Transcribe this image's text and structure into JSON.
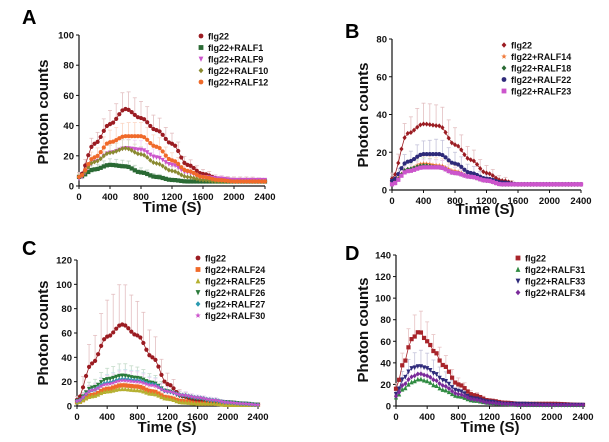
{
  "chart_data": [
    {
      "panel": "A",
      "type": "line",
      "title": "",
      "xlabel": "Time (S)",
      "ylabel": "Photon counts",
      "xlim": [
        0,
        2400
      ],
      "ylim": [
        0,
        100
      ],
      "xticks": [
        0,
        400,
        800,
        1200,
        1600,
        2000,
        2400
      ],
      "yticks": [
        0,
        20,
        40,
        60,
        80,
        100
      ],
      "legend_position": "top-right",
      "grid": false,
      "x": [
        0,
        200,
        400,
        600,
        800,
        1000,
        1200,
        1400,
        1600,
        1800,
        2000,
        2200,
        2400
      ],
      "series": [
        {
          "name": "flg22",
          "color": "#9b1c22",
          "marker": "circle",
          "values": [
            6,
            28,
            41,
            51,
            45,
            37,
            28,
            14,
            8,
            5,
            4,
            4,
            3
          ],
          "error": [
            3,
            6,
            9,
            12,
            11,
            9,
            7,
            4,
            3,
            2,
            2,
            2,
            2
          ]
        },
        {
          "name": "flg22+RALF1",
          "color": "#2a6a34",
          "marker": "square",
          "values": [
            6,
            11,
            14,
            13,
            9,
            6,
            4,
            3,
            3,
            3,
            3,
            3,
            3
          ],
          "error": [
            2,
            3,
            4,
            4,
            3,
            2,
            1,
            1,
            1,
            1,
            1,
            1,
            1
          ]
        },
        {
          "name": "flg22+RALF9",
          "color": "#cc55cc",
          "marker": "triangle-down",
          "values": [
            5,
            16,
            22,
            25,
            24,
            19,
            14,
            9,
            6,
            5,
            4,
            4,
            4
          ],
          "error": [
            2,
            4,
            5,
            6,
            6,
            5,
            4,
            3,
            2,
            2,
            1,
            1,
            1
          ]
        },
        {
          "name": "flg22+RALF10",
          "color": "#8a8a30",
          "marker": "diamond",
          "values": [
            6,
            16,
            22,
            25,
            21,
            15,
            10,
            6,
            4,
            3,
            3,
            3,
            3
          ],
          "error": [
            2,
            4,
            5,
            6,
            5,
            4,
            3,
            2,
            1,
            1,
            1,
            1,
            1
          ]
        },
        {
          "name": "flg22+RALF12",
          "color": "#f06a2a",
          "marker": "circle",
          "values": [
            6,
            19,
            29,
            33,
            33,
            26,
            17,
            10,
            6,
            4,
            3,
            3,
            3
          ],
          "error": [
            2,
            5,
            8,
            9,
            9,
            7,
            5,
            3,
            2,
            1,
            1,
            1,
            1
          ]
        }
      ]
    },
    {
      "panel": "B",
      "type": "line",
      "title": "",
      "xlabel": "Time (S)",
      "ylabel": "Photon counts",
      "xlim": [
        0,
        2400
      ],
      "ylim": [
        0,
        80
      ],
      "xticks": [
        0,
        400,
        800,
        1200,
        1600,
        2000,
        2400
      ],
      "yticks": [
        0,
        20,
        40,
        60,
        80
      ],
      "legend_position": "top-right",
      "grid": false,
      "x": [
        0,
        200,
        400,
        600,
        800,
        1000,
        1200,
        1400,
        1600,
        1800,
        2000,
        2200,
        2400
      ],
      "series": [
        {
          "name": "flg22",
          "color": "#9b1c22",
          "marker": "diamond",
          "values": [
            6,
            30,
            35,
            34,
            24,
            16,
            9,
            5,
            3,
            3,
            3,
            3,
            3
          ],
          "error": [
            3,
            8,
            11,
            11,
            9,
            6,
            4,
            2,
            1,
            1,
            1,
            1,
            1
          ]
        },
        {
          "name": "flg22+RALF14",
          "color": "#f07a3a",
          "marker": "star",
          "values": [
            4,
            11,
            14,
            13,
            10,
            7,
            5,
            3,
            3,
            3,
            3,
            3,
            3
          ],
          "error": [
            2,
            3,
            4,
            4,
            3,
            2,
            2,
            1,
            1,
            1,
            1,
            1,
            1
          ]
        },
        {
          "name": "flg22+RALF18",
          "color": "#2a6a34",
          "marker": "diamond",
          "values": [
            3,
            11,
            13,
            12,
            9,
            7,
            5,
            3,
            3,
            3,
            3,
            3,
            3
          ],
          "error": [
            2,
            3,
            4,
            4,
            3,
            2,
            2,
            1,
            1,
            1,
            1,
            1,
            1
          ]
        },
        {
          "name": "flg22+RALF22",
          "color": "#2e2a7a",
          "marker": "circle",
          "values": [
            5,
            15,
            19,
            19,
            14,
            9,
            6,
            4,
            3,
            3,
            3,
            3,
            3
          ],
          "error": [
            2,
            5,
            7,
            8,
            6,
            4,
            2,
            1,
            1,
            1,
            1,
            1,
            1
          ]
        },
        {
          "name": "flg22+RALF23",
          "color": "#cc55cc",
          "marker": "square",
          "values": [
            3,
            10,
            12,
            12,
            9,
            7,
            5,
            3,
            3,
            3,
            3,
            3,
            3
          ],
          "error": [
            2,
            3,
            4,
            4,
            3,
            2,
            2,
            1,
            1,
            1,
            1,
            1,
            1
          ]
        }
      ]
    },
    {
      "panel": "C",
      "type": "line",
      "title": "",
      "xlabel": "Time (S)",
      "ylabel": "Photon counts",
      "xlim": [
        0,
        2400
      ],
      "ylim": [
        0,
        120
      ],
      "xticks": [
        0,
        400,
        800,
        1200,
        1600,
        2000,
        2400
      ],
      "yticks": [
        0,
        20,
        40,
        60,
        80,
        100,
        120
      ],
      "legend_position": "top-right",
      "grid": false,
      "x": [
        0,
        200,
        400,
        600,
        800,
        1000,
        1200,
        1400,
        1600,
        1800,
        2000,
        2200,
        2400
      ],
      "series": [
        {
          "name": "flg22",
          "color": "#9b1c22",
          "marker": "circle",
          "values": [
            5,
            35,
            57,
            67,
            58,
            40,
            18,
            8,
            4,
            2,
            1,
            1,
            1
          ],
          "error": [
            3,
            20,
            30,
            34,
            28,
            20,
            9,
            4,
            2,
            1,
            1,
            1,
            1
          ]
        },
        {
          "name": "flg22+RALF24",
          "color": "#f06a2a",
          "marker": "square",
          "values": [
            3,
            9,
            14,
            17,
            16,
            12,
            7,
            4,
            2,
            2,
            1,
            1,
            1
          ],
          "error": [
            1,
            3,
            5,
            6,
            5,
            4,
            2,
            1,
            1,
            1,
            1,
            1,
            1
          ]
        },
        {
          "name": "flg22+RALF25",
          "color": "#b5b030",
          "marker": "triangle-up",
          "values": [
            3,
            8,
            12,
            14,
            13,
            10,
            6,
            3,
            2,
            2,
            1,
            1,
            1
          ],
          "error": [
            1,
            3,
            4,
            5,
            4,
            3,
            2,
            1,
            1,
            1,
            1,
            1,
            1
          ]
        },
        {
          "name": "flg22+RALF26",
          "color": "#2a7a3a",
          "marker": "triangle-down",
          "values": [
            4,
            15,
            22,
            25,
            23,
            19,
            12,
            8,
            6,
            4,
            3,
            2,
            1
          ],
          "error": [
            2,
            6,
            9,
            10,
            9,
            7,
            5,
            3,
            2,
            2,
            1,
            1,
            1
          ]
        },
        {
          "name": "flg22+RALF27",
          "color": "#2a9ab0",
          "marker": "diamond",
          "values": [
            4,
            13,
            19,
            22,
            21,
            18,
            12,
            9,
            7,
            5,
            3,
            2,
            1
          ],
          "error": [
            2,
            5,
            7,
            8,
            8,
            6,
            4,
            3,
            2,
            2,
            1,
            1,
            1
          ]
        },
        {
          "name": "flg22+RALF30",
          "color": "#cc55cc",
          "marker": "star",
          "values": [
            4,
            13,
            18,
            21,
            20,
            17,
            12,
            9,
            7,
            5,
            3,
            2,
            1
          ],
          "error": [
            2,
            5,
            7,
            8,
            8,
            6,
            4,
            3,
            2,
            2,
            1,
            1,
            1
          ]
        }
      ]
    },
    {
      "panel": "D",
      "type": "line",
      "title": "",
      "xlabel": "Time (S)",
      "ylabel": "Photon counts",
      "xlim": [
        0,
        2400
      ],
      "ylim": [
        0,
        140
      ],
      "xticks": [
        0,
        400,
        800,
        1200,
        1600,
        2000,
        2400
      ],
      "yticks": [
        0,
        20,
        40,
        60,
        80,
        100,
        120,
        140
      ],
      "legend_position": "top-right",
      "grid": false,
      "x": [
        0,
        100,
        200,
        300,
        400,
        500,
        600,
        800,
        1000,
        1200,
        1400,
        1600,
        2000,
        2400
      ],
      "series": [
        {
          "name": "flg22",
          "color": "#a8242a",
          "marker": "square",
          "values": [
            16,
            40,
            62,
            69,
            60,
            50,
            38,
            20,
            10,
            5,
            3,
            2,
            2,
            1
          ],
          "error": [
            5,
            12,
            20,
            20,
            18,
            15,
            11,
            6,
            3,
            2,
            1,
            1,
            1,
            1
          ]
        },
        {
          "name": "flg22+RALF31",
          "color": "#2e8a40",
          "marker": "triangle-up",
          "values": [
            8,
            16,
            22,
            25,
            23,
            19,
            15,
            9,
            5,
            3,
            2,
            1,
            1,
            1
          ],
          "error": [
            2,
            4,
            5,
            6,
            5,
            4,
            3,
            2,
            1,
            1,
            1,
            1,
            1,
            1
          ]
        },
        {
          "name": "flg22+RALF33",
          "color": "#2e2a7a",
          "marker": "triangle-down",
          "values": [
            11,
            26,
            35,
            37,
            35,
            30,
            24,
            14,
            7,
            4,
            2,
            2,
            1,
            1
          ],
          "error": [
            3,
            8,
            13,
            15,
            14,
            12,
            9,
            5,
            3,
            2,
            1,
            1,
            1,
            1
          ]
        },
        {
          "name": "flg22+RALF34",
          "color": "#7a2a9a",
          "marker": "diamond",
          "values": [
            9,
            20,
            27,
            30,
            28,
            24,
            19,
            11,
            6,
            3,
            2,
            1,
            1,
            1
          ],
          "error": [
            2,
            5,
            7,
            8,
            7,
            6,
            5,
            3,
            2,
            1,
            1,
            1,
            1,
            1
          ]
        }
      ]
    }
  ]
}
